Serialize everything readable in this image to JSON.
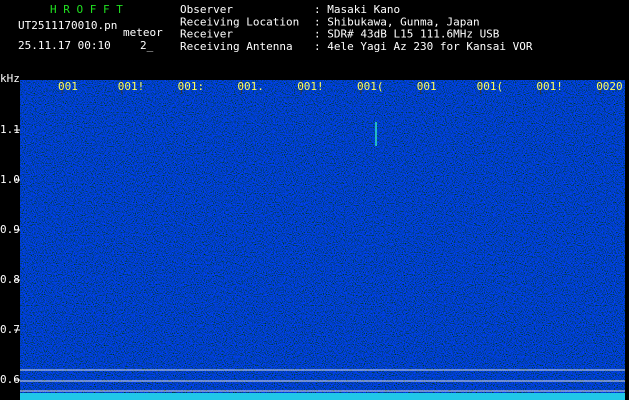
{
  "header": {
    "title": "H R O F F T",
    "filename": "UT2511170010.pn",
    "label": "meteor",
    "datetime": "25.11.17 00:10",
    "status": "2_"
  },
  "info": {
    "rows": [
      {
        "label": "Observer",
        "value": ": Masaki Kano"
      },
      {
        "label": "Receiving Location",
        "value": ": Shibukawa, Gunma, Japan"
      },
      {
        "label": "Receiver",
        "value": ": SDR# 43dB L15 111.6MHz USB"
      },
      {
        "label": "Receiving Antenna",
        "value": ": 4ele Yagi Az 230 for Kansai VOR"
      }
    ]
  },
  "axis": {
    "unit": "kHz",
    "y_labels": [
      "1.1",
      "1.0",
      "0.9",
      "0.8",
      "0.7",
      "0.6"
    ],
    "x_labels": [
      "001",
      "001!",
      "001:",
      "001.",
      "001!",
      "001(",
      "001",
      "001(",
      "001!",
      "0020"
    ]
  }
}
